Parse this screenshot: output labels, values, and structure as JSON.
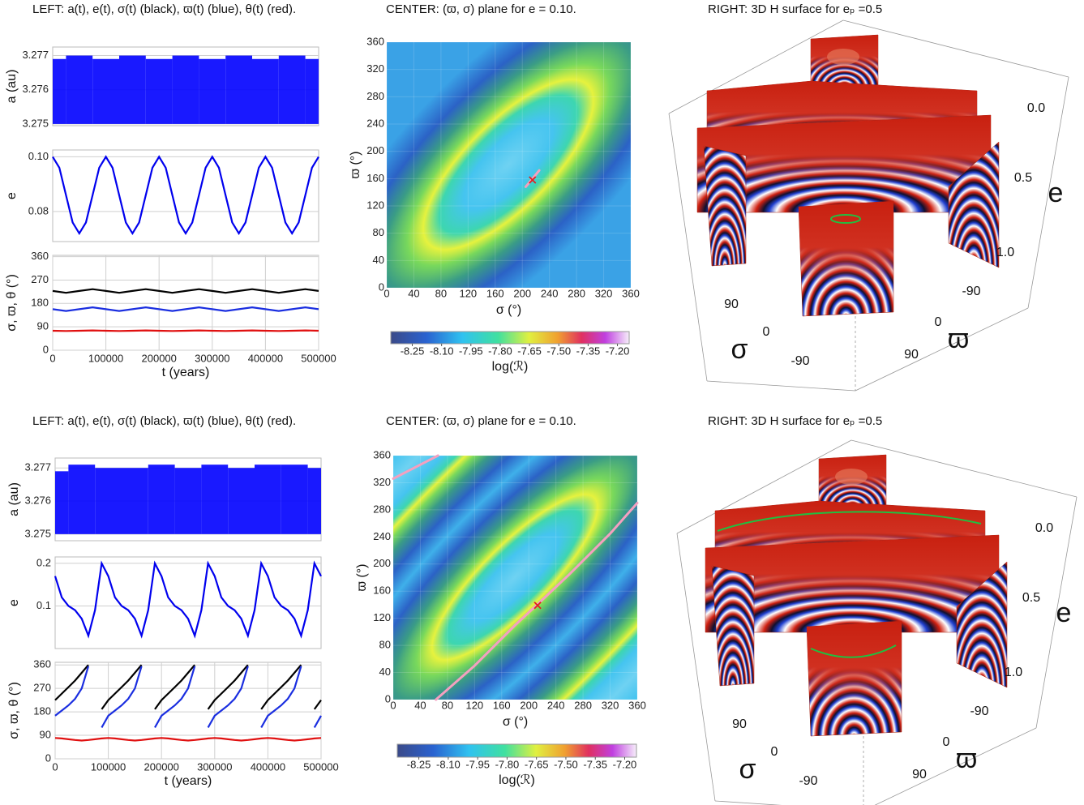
{
  "chart_data": [
    {
      "type": "area",
      "title": "LEFT: a(t), e(t), σ(t) (black), ϖ(t) (blue), θ(t) (red).",
      "ylabel": "a (au)",
      "color": "#0000ff",
      "x": [
        0,
        50000,
        100000,
        150000,
        200000,
        250000,
        300000,
        350000,
        400000,
        450000,
        500000
      ],
      "low": [
        3.275,
        3.275,
        3.275,
        3.275,
        3.275,
        3.275,
        3.275,
        3.275,
        3.275,
        3.275,
        3.275
      ],
      "high": [
        3.2769,
        3.277,
        3.2769,
        3.277,
        3.2769,
        3.277,
        3.2769,
        3.277,
        3.2769,
        3.277,
        3.2769
      ],
      "xlim": [
        0,
        500000
      ],
      "ylim": [
        3.27495,
        3.27725
      ],
      "yticks": [
        3.275,
        3.276,
        3.277
      ],
      "grid": true
    },
    {
      "type": "line",
      "ylabel": "e",
      "x": [
        0,
        12500,
        25000,
        37500,
        50000,
        62500,
        75000,
        87500,
        100000,
        112500,
        125000,
        137500,
        150000,
        162500,
        175000,
        187500,
        200000,
        212500,
        225000,
        237500,
        250000,
        262500,
        275000,
        287500,
        300000,
        312500,
        325000,
        337500,
        350000,
        362500,
        375000,
        387500,
        400000,
        412500,
        425000,
        437500,
        450000,
        462500,
        475000,
        487500,
        500000
      ],
      "series": [
        {
          "color": "#0000ee",
          "values": [
            0.1,
            0.096,
            0.086,
            0.076,
            0.072,
            0.076,
            0.086,
            0.096,
            0.1,
            0.096,
            0.086,
            0.076,
            0.072,
            0.076,
            0.086,
            0.096,
            0.1,
            0.096,
            0.086,
            0.076,
            0.072,
            0.076,
            0.086,
            0.096,
            0.1,
            0.096,
            0.086,
            0.076,
            0.072,
            0.076,
            0.086,
            0.096,
            0.1,
            0.096,
            0.086,
            0.076,
            0.072,
            0.076,
            0.086,
            0.096,
            0.1
          ]
        }
      ],
      "xlim": [
        0,
        500000
      ],
      "ylim": [
        0.069,
        0.1025
      ],
      "yticks": [
        0.08,
        {
          "value": 0.1,
          "label": "0.10"
        }
      ],
      "grid": true
    },
    {
      "type": "line",
      "ylabel": "σ, ϖ, θ (°)",
      "xlabel": "t (years)",
      "x": [
        0,
        25000,
        50000,
        75000,
        100000,
        125000,
        150000,
        175000,
        200000,
        225000,
        250000,
        275000,
        300000,
        325000,
        350000,
        375000,
        400000,
        425000,
        450000,
        475000,
        500000
      ],
      "series": [
        {
          "color": "#000000",
          "values": [
            228,
            221,
            228,
            235,
            228,
            221,
            228,
            235,
            228,
            221,
            228,
            235,
            228,
            221,
            228,
            235,
            228,
            221,
            228,
            235,
            228
          ]
        },
        {
          "color": "#1a2ee0",
          "values": [
            158,
            151,
            158,
            165,
            158,
            151,
            158,
            165,
            158,
            151,
            158,
            165,
            158,
            151,
            158,
            165,
            158,
            151,
            158,
            165,
            158
          ]
        },
        {
          "color": "#e01010",
          "values": [
            75,
            74,
            75,
            76,
            75,
            74,
            75,
            76,
            75,
            74,
            75,
            76,
            75,
            74,
            75,
            76,
            75,
            74,
            75,
            76,
            75
          ]
        }
      ],
      "xlim": [
        0,
        500000
      ],
      "xticks": [
        0,
        100000,
        200000,
        300000,
        400000,
        500000
      ],
      "ylim": [
        0,
        365
      ],
      "yticks": [
        0,
        90,
        180,
        270,
        360
      ],
      "grid": true
    },
    {
      "type": "contour",
      "title": "CENTER: (ϖ, σ) plane for e = 0.10.",
      "xlabel": "σ (°)",
      "ylabel": "ϖ (°)",
      "xlim": [
        0,
        360
      ],
      "ylim": [
        0,
        360
      ],
      "xticks": [
        0,
        40,
        80,
        120,
        160,
        200,
        240,
        280,
        320,
        360
      ],
      "yticks": [
        0,
        40,
        80,
        120,
        160,
        200,
        240,
        280,
        320,
        360
      ],
      "curves": [
        {
          "color": "#f4a0c0",
          "x": [
            205,
            215,
            225
          ],
          "y": [
            148,
            160,
            172
          ]
        }
      ],
      "marker": {
        "x": 215,
        "y": 158,
        "color": "#e02020"
      },
      "colorbar": {
        "label": "log(ℛ)",
        "zlim": [
          -8.36,
          -7.14
        ],
        "ticks": [
          -8.25,
          {
            "value": -8.1,
            "label": "-8.10"
          },
          -7.95,
          {
            "value": -7.8,
            "label": "-7.80"
          },
          -7.65,
          {
            "value": -7.5,
            "label": "-7.50"
          },
          -7.35,
          {
            "value": -7.2,
            "label": "-7.20"
          }
        ]
      }
    },
    {
      "type": "surface",
      "title": "RIGHT:  3D H surface for eₚ =0.5",
      "eticks": [
        {
          "value": 0,
          "label": "0.0"
        },
        0.5,
        {
          "value": 1,
          "label": "1.0"
        }
      ],
      "elabel": "e",
      "sigma_label": "σ",
      "sigma_ticks": [
        90,
        0,
        -90
      ],
      "varpi_label": "ϖ",
      "varpi_ticks": [
        -90,
        0,
        90
      ]
    },
    {
      "type": "area",
      "title": "LEFT: a(t), e(t), σ(t) (black), ϖ(t) (blue), θ(t) (red).",
      "ylabel": "a (au)",
      "color": "#0000ff",
      "x": [
        0,
        50000,
        100000,
        150000,
        200000,
        250000,
        300000,
        350000,
        400000,
        450000,
        500000
      ],
      "low": [
        3.275,
        3.275,
        3.275,
        3.275,
        3.275,
        3.275,
        3.275,
        3.275,
        3.275,
        3.275,
        3.275
      ],
      "high": [
        3.2769,
        3.2771,
        3.277,
        3.277,
        3.2771,
        3.277,
        3.2771,
        3.277,
        3.2771,
        3.2771,
        3.277
      ],
      "xlim": [
        0,
        500000
      ],
      "ylim": [
        3.2748,
        3.2773
      ],
      "yticks": [
        3.275,
        3.276,
        3.277
      ],
      "grid": true
    },
    {
      "type": "line",
      "ylabel": "e",
      "x": [
        0,
        12500,
        25000,
        37500,
        50000,
        62500,
        75000,
        87500,
        100000,
        112500,
        125000,
        137500,
        150000,
        162500,
        175000,
        187500,
        200000,
        212500,
        225000,
        237500,
        250000,
        262500,
        275000,
        287500,
        300000,
        312500,
        325000,
        337500,
        350000,
        362500,
        375000,
        387500,
        400000,
        412500,
        425000,
        437500,
        450000,
        462500,
        475000,
        487500,
        500000
      ],
      "series": [
        {
          "color": "#0000ee",
          "values": [
            0.17,
            0.12,
            0.1,
            0.09,
            0.07,
            0.03,
            0.09,
            0.2,
            0.17,
            0.12,
            0.1,
            0.09,
            0.07,
            0.03,
            0.09,
            0.2,
            0.17,
            0.12,
            0.1,
            0.09,
            0.07,
            0.03,
            0.09,
            0.2,
            0.17,
            0.12,
            0.1,
            0.09,
            0.07,
            0.03,
            0.09,
            0.2,
            0.17,
            0.12,
            0.1,
            0.09,
            0.07,
            0.03,
            0.09,
            0.2,
            0.17
          ]
        }
      ],
      "xlim": [
        0,
        500000
      ],
      "ylim": [
        0,
        0.215
      ],
      "yticks": [
        0.1,
        0.2
      ],
      "grid": true
    },
    {
      "type": "line",
      "ylabel": "σ, ϖ, θ (°)",
      "xlabel": "t (years)",
      "x": [
        0,
        12500,
        25000,
        37500,
        50000,
        62500,
        75000,
        87500,
        100000,
        112500,
        125000,
        137500,
        150000,
        162500,
        175000,
        187500,
        200000,
        212500,
        225000,
        237500,
        250000,
        262500,
        275000,
        287500,
        300000,
        312500,
        325000,
        337500,
        350000,
        362500,
        375000,
        387500,
        400000,
        412500,
        425000,
        437500,
        450000,
        462500,
        475000,
        487500,
        500000
      ],
      "series": [
        {
          "color": "#000000",
          "values": [
            225,
            250,
            275,
            300,
            330,
            360,
            null,
            190,
            225,
            250,
            275,
            300,
            330,
            360,
            null,
            190,
            225,
            250,
            275,
            300,
            330,
            360,
            null,
            190,
            225,
            250,
            275,
            300,
            330,
            360,
            null,
            190,
            225,
            250,
            275,
            300,
            330,
            360,
            null,
            190,
            225
          ]
        },
        {
          "color": "#1a2ee0",
          "values": [
            165,
            185,
            205,
            230,
            270,
            355,
            null,
            120,
            165,
            185,
            205,
            230,
            270,
            355,
            null,
            120,
            165,
            185,
            205,
            230,
            270,
            355,
            null,
            120,
            165,
            185,
            205,
            230,
            270,
            355,
            null,
            120,
            165,
            185,
            205,
            230,
            270,
            355,
            null,
            120,
            165
          ]
        },
        {
          "color": "#e01010",
          "values": [
            80,
            78,
            75,
            72,
            70,
            72,
            75,
            78,
            80,
            78,
            75,
            72,
            70,
            72,
            75,
            78,
            80,
            78,
            75,
            72,
            70,
            72,
            75,
            78,
            80,
            78,
            75,
            72,
            70,
            72,
            75,
            78,
            80,
            78,
            75,
            72,
            70,
            72,
            75,
            78,
            80
          ]
        }
      ],
      "xlim": [
        0,
        500000
      ],
      "xticks": [
        0,
        100000,
        200000,
        300000,
        400000,
        500000
      ],
      "ylim": [
        0,
        370
      ],
      "yticks": [
        0,
        90,
        180,
        270,
        360
      ],
      "grid": true
    },
    {
      "type": "contour",
      "title": "CENTER: (ϖ, σ) plane for e = 0.10.",
      "xlabel": "σ (°)",
      "ylabel": "ϖ (°)",
      "xlim": [
        0,
        360
      ],
      "ylim": [
        0,
        360
      ],
      "xticks": [
        0,
        40,
        80,
        120,
        160,
        200,
        240,
        280,
        320,
        360
      ],
      "yticks": [
        0,
        40,
        80,
        120,
        160,
        200,
        240,
        280,
        320,
        360
      ],
      "curves": [
        {
          "color": "#f4a0c0",
          "x": [
            63,
            120,
            180,
            210,
            260,
            320,
            360
          ],
          "y": [
            0,
            50,
            110,
            138,
            185,
            245,
            290
          ]
        },
        {
          "color": "#f4a0c0",
          "x": [
            0,
            66
          ],
          "y": [
            326,
            360
          ]
        }
      ],
      "marker": {
        "x": 213,
        "y": 139,
        "color": "#e02020"
      },
      "colorbar": {
        "label": "log(ℛ)",
        "zlim": [
          -8.36,
          -7.14
        ],
        "ticks": [
          -8.25,
          {
            "value": -8.1,
            "label": "-8.10"
          },
          -7.95,
          {
            "value": -7.8,
            "label": "-7.80"
          },
          -7.65,
          {
            "value": -7.5,
            "label": "-7.50"
          },
          -7.35,
          {
            "value": -7.2,
            "label": "-7.20"
          }
        ]
      }
    },
    {
      "type": "surface",
      "title": "RIGHT:  3D H surface for eₚ =0.5",
      "eticks": [
        {
          "value": 0,
          "label": "0.0"
        },
        0.5,
        {
          "value": 1,
          "label": "1.0"
        }
      ],
      "elabel": "e",
      "sigma_label": "σ",
      "sigma_ticks": [
        90,
        0,
        -90
      ],
      "varpi_label": "ϖ",
      "varpi_ticks": [
        -90,
        0,
        90
      ]
    }
  ]
}
